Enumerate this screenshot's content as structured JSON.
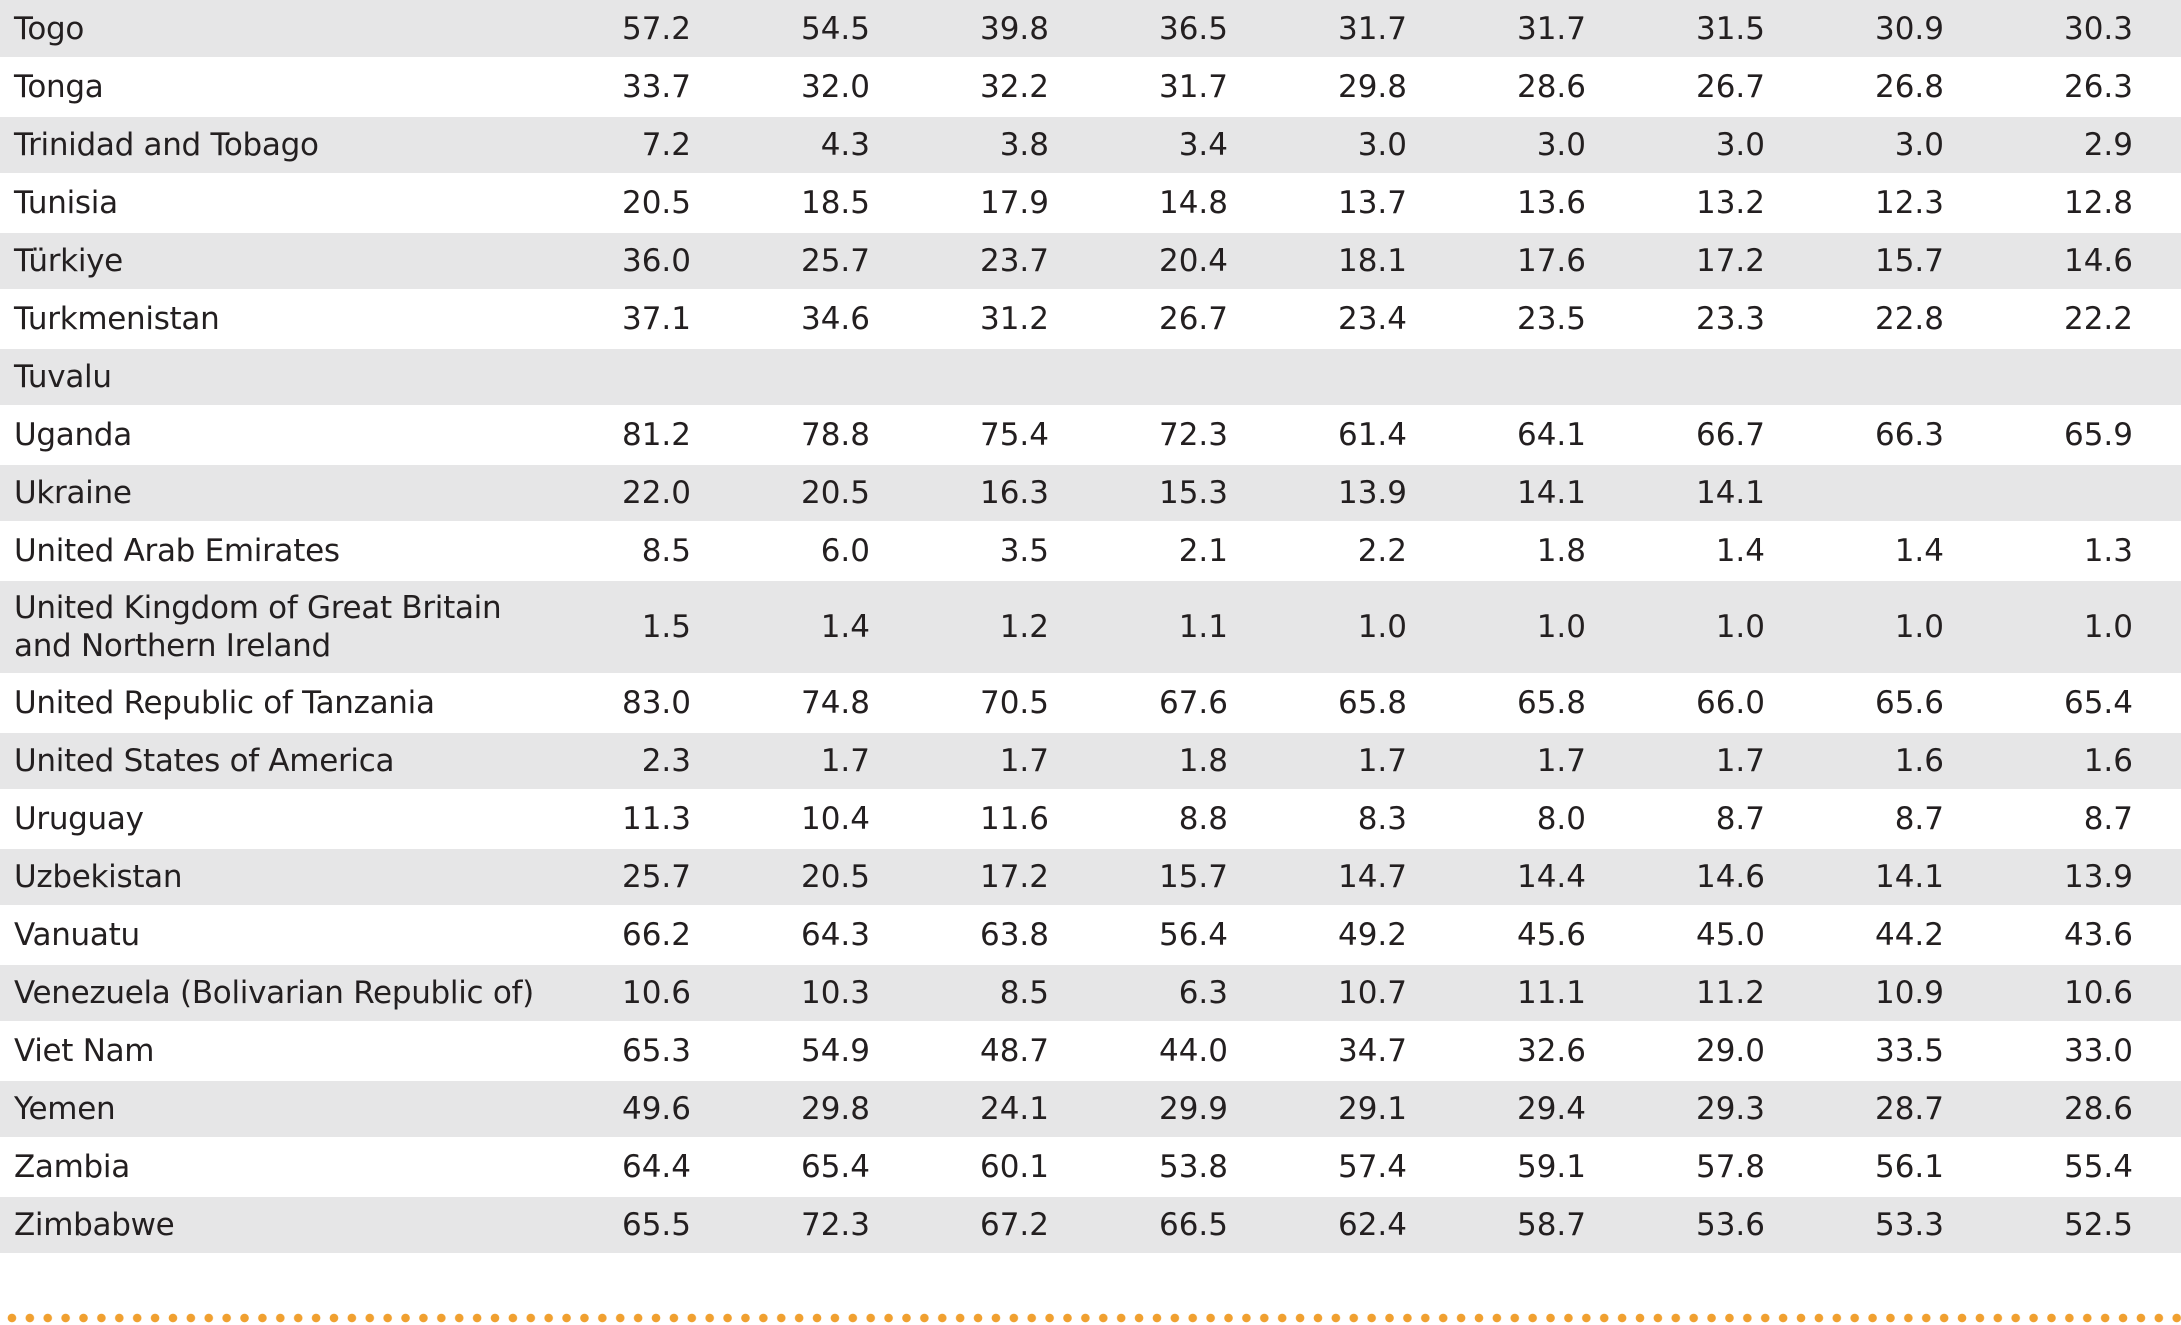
{
  "table": {
    "rows": [
      {
        "country": "Togo",
        "values": [
          "57.2",
          "54.5",
          "39.8",
          "36.5",
          "31.7",
          "31.7",
          "31.5",
          "30.9",
          "30.3"
        ]
      },
      {
        "country": "Tonga",
        "values": [
          "33.7",
          "32.0",
          "32.2",
          "31.7",
          "29.8",
          "28.6",
          "26.7",
          "26.8",
          "26.3"
        ]
      },
      {
        "country": "Trinidad and Tobago",
        "values": [
          "7.2",
          "4.3",
          "3.8",
          "3.4",
          "3.0",
          "3.0",
          "3.0",
          "3.0",
          "2.9"
        ]
      },
      {
        "country": "Tunisia",
        "values": [
          "20.5",
          "18.5",
          "17.9",
          "14.8",
          "13.7",
          "13.6",
          "13.2",
          "12.3",
          "12.8"
        ]
      },
      {
        "country": "Türkiye",
        "values": [
          "36.0",
          "25.7",
          "23.7",
          "20.4",
          "18.1",
          "17.6",
          "17.2",
          "15.7",
          "14.6"
        ]
      },
      {
        "country": "Turkmenistan",
        "values": [
          "37.1",
          "34.6",
          "31.2",
          "26.7",
          "23.4",
          "23.5",
          "23.3",
          "22.8",
          "22.2"
        ]
      },
      {
        "country": "Tuvalu",
        "values": [
          "",
          "",
          "",
          "",
          "",
          "",
          "",
          "",
          ""
        ]
      },
      {
        "country": "Uganda",
        "values": [
          "81.2",
          "78.8",
          "75.4",
          "72.3",
          "61.4",
          "64.1",
          "66.7",
          "66.3",
          "65.9"
        ]
      },
      {
        "country": "Ukraine",
        "values": [
          "22.0",
          "20.5",
          "16.3",
          "15.3",
          "13.9",
          "14.1",
          "14.1",
          "",
          ""
        ]
      },
      {
        "country": "United Arab Emirates",
        "values": [
          "8.5",
          "6.0",
          "3.5",
          "2.1",
          "2.2",
          "1.8",
          "1.4",
          "1.4",
          "1.3"
        ]
      },
      {
        "country": "United Kingdom of Great Britain and Northern Ireland",
        "values": [
          "1.5",
          "1.4",
          "1.2",
          "1.1",
          "1.0",
          "1.0",
          "1.0",
          "1.0",
          "1.0"
        ]
      },
      {
        "country": "United Republic of Tanzania",
        "values": [
          "83.0",
          "74.8",
          "70.5",
          "67.6",
          "65.8",
          "65.8",
          "66.0",
          "65.6",
          "65.4"
        ]
      },
      {
        "country": "United States of America",
        "values": [
          "2.3",
          "1.7",
          "1.7",
          "1.8",
          "1.7",
          "1.7",
          "1.7",
          "1.6",
          "1.6"
        ]
      },
      {
        "country": "Uruguay",
        "values": [
          "11.3",
          "10.4",
          "11.6",
          "8.8",
          "8.3",
          "8.0",
          "8.7",
          "8.7",
          "8.7"
        ]
      },
      {
        "country": "Uzbekistan",
        "values": [
          "25.7",
          "20.5",
          "17.2",
          "15.7",
          "14.7",
          "14.4",
          "14.6",
          "14.1",
          "13.9"
        ]
      },
      {
        "country": "Vanuatu",
        "values": [
          "66.2",
          "64.3",
          "63.8",
          "56.4",
          "49.2",
          "45.6",
          "45.0",
          "44.2",
          "43.6"
        ]
      },
      {
        "country": "Venezuela (Bolivarian Republic of)",
        "values": [
          "10.6",
          "10.3",
          "8.5",
          "6.3",
          "10.7",
          "11.1",
          "11.2",
          "10.9",
          "10.6"
        ]
      },
      {
        "country": "Viet Nam",
        "values": [
          "65.3",
          "54.9",
          "48.7",
          "44.0",
          "34.7",
          "32.6",
          "29.0",
          "33.5",
          "33.0"
        ]
      },
      {
        "country": "Yemen",
        "values": [
          "49.6",
          "29.8",
          "24.1",
          "29.9",
          "29.1",
          "29.4",
          "29.3",
          "28.7",
          "28.6"
        ]
      },
      {
        "country": "Zambia",
        "values": [
          "64.4",
          "65.4",
          "60.1",
          "53.8",
          "57.4",
          "59.1",
          "57.8",
          "56.1",
          "55.4"
        ]
      },
      {
        "country": "Zimbabwe",
        "values": [
          "65.5",
          "72.3",
          "67.2",
          "66.5",
          "62.4",
          "58.7",
          "53.6",
          "53.3",
          "52.5"
        ]
      }
    ]
  },
  "colors": {
    "stripe": "#e6e6e7",
    "dots": "#f0a030"
  }
}
